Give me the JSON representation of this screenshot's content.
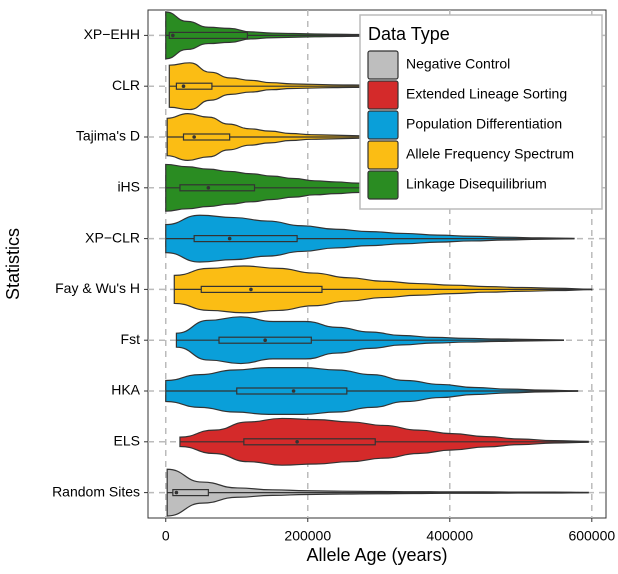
{
  "chart_data": {
    "type": "violin",
    "x_label": "Allele Age (years)",
    "y_label": "Statistics",
    "xlim": [
      -25000,
      620000
    ],
    "xticks": [
      0,
      200000,
      400000,
      600000
    ],
    "grid": true,
    "legend": {
      "title": "Data Type",
      "position": "top-right",
      "entries": [
        {
          "name": "Negative Control",
          "color": "#bebebe"
        },
        {
          "name": "Extended Lineage Sorting",
          "color": "#d42a2a"
        },
        {
          "name": "Population Differentiation",
          "color": "#0a9fd9"
        },
        {
          "name": "Allele Frequency Spectrum",
          "color": "#fbbd14"
        },
        {
          "name": "Linkage Disequilibrium",
          "color": "#2a8c22"
        }
      ]
    },
    "categories": [
      "XP−EHH",
      "CLR",
      "Tajima's D",
      "iHS",
      "XP−CLR",
      "Fay & Wu's H",
      "Fst",
      "HKA",
      "ELS",
      "Random Sites"
    ],
    "violins": [
      {
        "color": "#2a8c22",
        "min": 0,
        "q1": 5000,
        "median": 10000,
        "q3": 115000,
        "max": 360000,
        "density": [
          1,
          0.6,
          0.35,
          0.3,
          0.15,
          0.1,
          0.08,
          0.06,
          0.05,
          0.04,
          0.03,
          0.02,
          0.01
        ]
      },
      {
        "color": "#fbbd14",
        "min": 5000,
        "q1": 15000,
        "median": 25000,
        "q3": 65000,
        "max": 350000,
        "density": [
          0.9,
          1,
          0.6,
          0.35,
          0.25,
          0.15,
          0.1,
          0.08,
          0.06,
          0.05,
          0.04,
          0.02,
          0.01
        ]
      },
      {
        "color": "#fbbd14",
        "min": 2000,
        "q1": 25000,
        "median": 40000,
        "q3": 90000,
        "max": 350000,
        "density": [
          0.8,
          1,
          0.85,
          0.55,
          0.35,
          0.25,
          0.15,
          0.1,
          0.08,
          0.06,
          0.04,
          0.02,
          0.01
        ]
      },
      {
        "color": "#2a8c22",
        "min": 0,
        "q1": 20000,
        "median": 60000,
        "q3": 125000,
        "max": 360000,
        "density": [
          1,
          0.9,
          0.8,
          0.7,
          0.6,
          0.5,
          0.4,
          0.3,
          0.25,
          0.2,
          0.15,
          0.12,
          0.1
        ]
      },
      {
        "color": "#0a9fd9",
        "min": 0,
        "q1": 40000,
        "median": 90000,
        "q3": 185000,
        "max": 575000,
        "density": [
          0.6,
          1,
          0.9,
          0.75,
          0.55,
          0.4,
          0.3,
          0.22,
          0.15,
          0.1,
          0.06,
          0.03,
          0.01
        ]
      },
      {
        "color": "#fbbd14",
        "min": 12000,
        "q1": 50000,
        "median": 120000,
        "q3": 220000,
        "max": 600000,
        "density": [
          0.6,
          0.9,
          1,
          0.9,
          0.7,
          0.5,
          0.35,
          0.25,
          0.18,
          0.12,
          0.08,
          0.05,
          0.01
        ]
      },
      {
        "color": "#0a9fd9",
        "min": 15000,
        "q1": 75000,
        "median": 140000,
        "q3": 205000,
        "max": 560000,
        "density": [
          0.3,
          0.85,
          1,
          0.8,
          0.8,
          0.55,
          0.35,
          0.2,
          0.12,
          0.08,
          0.05,
          0.03,
          0.01
        ]
      },
      {
        "color": "#0a9fd9",
        "min": 0,
        "q1": 100000,
        "median": 180000,
        "q3": 255000,
        "max": 580000,
        "density": [
          0.45,
          0.7,
          0.9,
          1,
          1,
          0.9,
          0.7,
          0.45,
          0.28,
          0.15,
          0.08,
          0.04,
          0.01
        ]
      },
      {
        "color": "#d42a2a",
        "min": 20000,
        "q1": 110000,
        "median": 185000,
        "q3": 295000,
        "max": 595000,
        "density": [
          0.2,
          0.5,
          0.85,
          1,
          0.95,
          0.85,
          0.7,
          0.5,
          0.35,
          0.22,
          0.12,
          0.05,
          0.02
        ]
      },
      {
        "color": "#bebebe",
        "min": 2000,
        "q1": 10000,
        "median": 15000,
        "q3": 60000,
        "max": 595000,
        "density": [
          1,
          0.45,
          0.2,
          0.12,
          0.08,
          0.06,
          0.05,
          0.04,
          0.03,
          0.03,
          0.02,
          0.02,
          0.01
        ]
      }
    ]
  }
}
